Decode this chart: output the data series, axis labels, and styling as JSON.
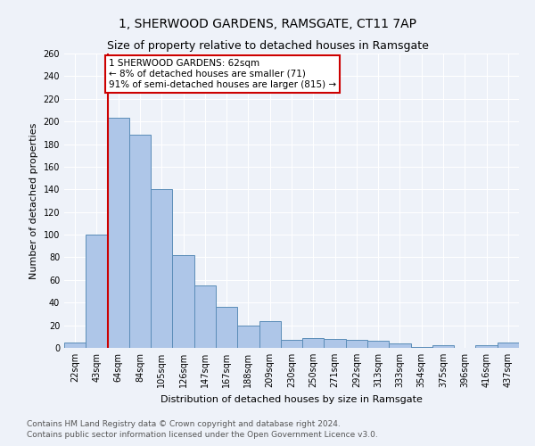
{
  "title": "1, SHERWOOD GARDENS, RAMSGATE, CT11 7AP",
  "subtitle": "Size of property relative to detached houses in Ramsgate",
  "xlabel": "Distribution of detached houses by size in Ramsgate",
  "ylabel": "Number of detached properties",
  "categories": [
    "22sqm",
    "43sqm",
    "64sqm",
    "84sqm",
    "105sqm",
    "126sqm",
    "147sqm",
    "167sqm",
    "188sqm",
    "209sqm",
    "230sqm",
    "250sqm",
    "271sqm",
    "292sqm",
    "313sqm",
    "333sqm",
    "354sqm",
    "375sqm",
    "396sqm",
    "416sqm",
    "437sqm"
  ],
  "values": [
    5,
    100,
    203,
    188,
    140,
    82,
    55,
    36,
    20,
    24,
    7,
    9,
    8,
    7,
    6,
    4,
    1,
    2,
    0,
    2,
    5
  ],
  "bar_color": "#aec6e8",
  "bar_edge_color": "#5b8db8",
  "vline_color": "#cc0000",
  "annotation_text": "1 SHERWOOD GARDENS: 62sqm\n← 8% of detached houses are smaller (71)\n91% of semi-detached houses are larger (815) →",
  "annotation_box_color": "#ffffff",
  "annotation_box_edge_color": "#cc0000",
  "ylim": [
    0,
    260
  ],
  "yticks": [
    0,
    20,
    40,
    60,
    80,
    100,
    120,
    140,
    160,
    180,
    200,
    220,
    240,
    260
  ],
  "footer1": "Contains HM Land Registry data © Crown copyright and database right 2024.",
  "footer2": "Contains public sector information licensed under the Open Government Licence v3.0.",
  "background_color": "#eef2f9",
  "plot_background_color": "#eef2f9",
  "grid_color": "#ffffff",
  "title_fontsize": 10,
  "subtitle_fontsize": 9,
  "axis_label_fontsize": 8,
  "tick_fontsize": 7,
  "footer_fontsize": 6.5,
  "annotation_fontsize": 7.5
}
